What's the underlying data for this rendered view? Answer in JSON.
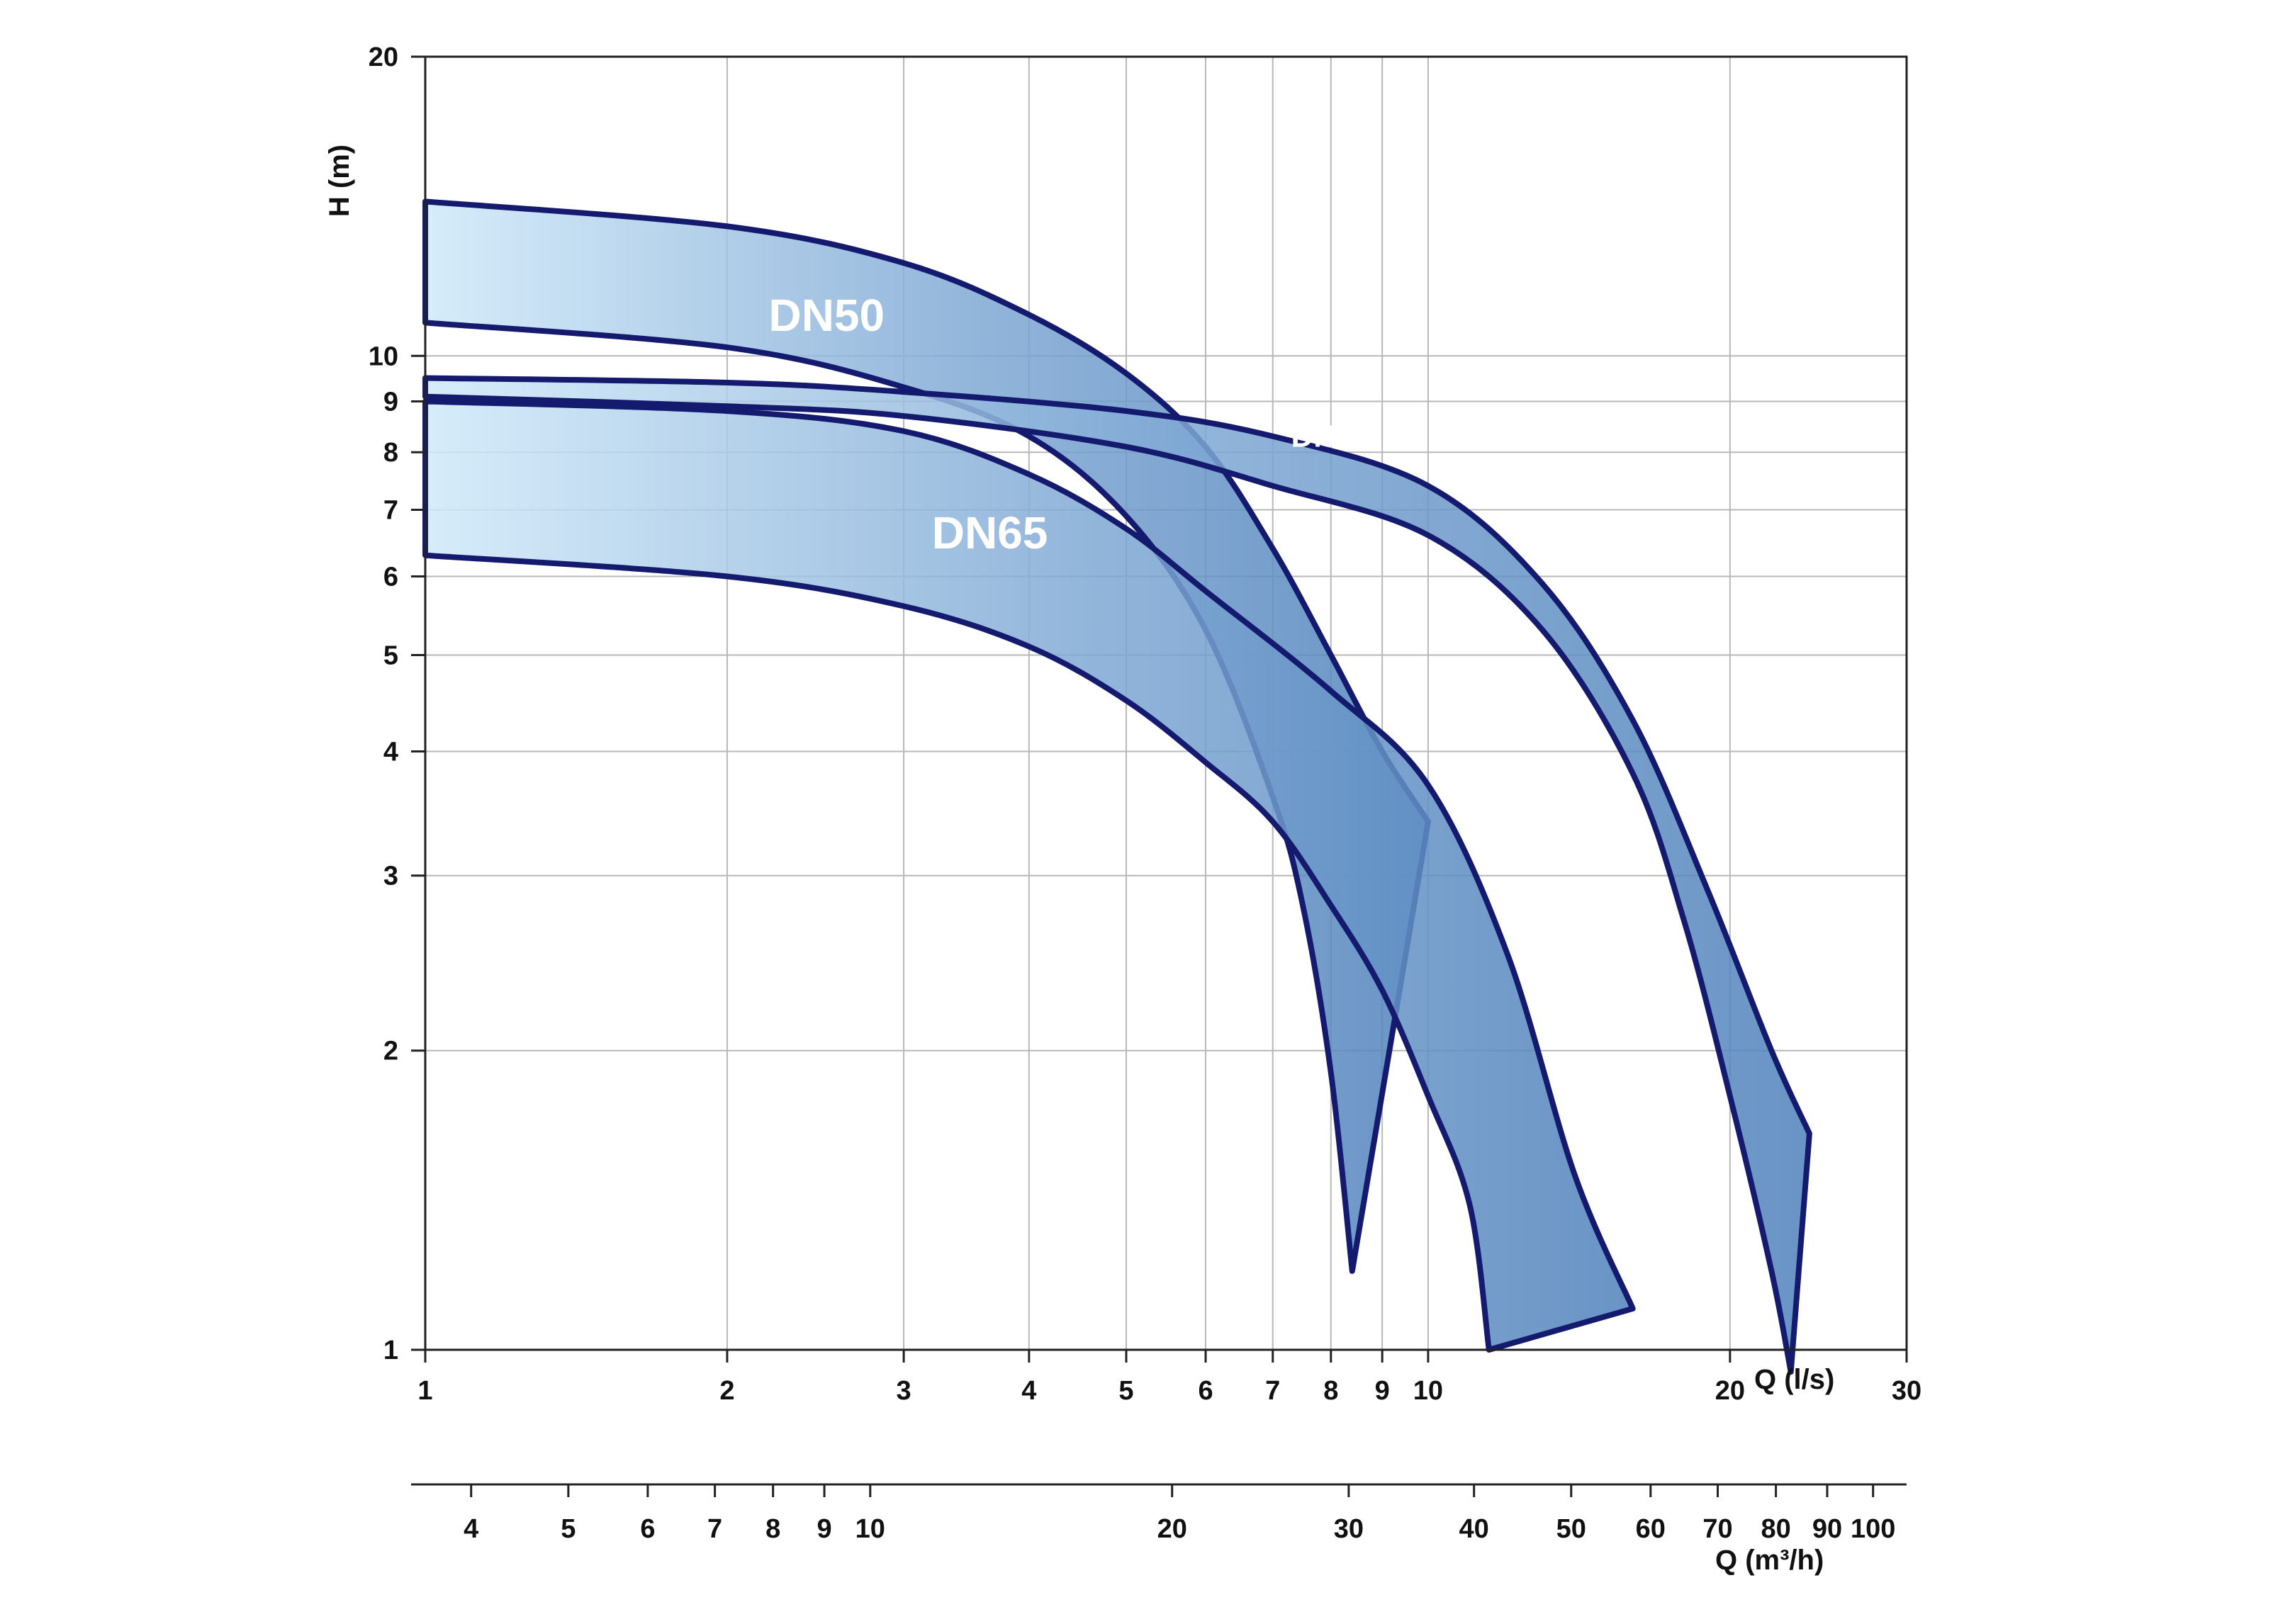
{
  "chart_data": {
    "type": "area",
    "title": "",
    "ylabel": "H (m)",
    "xlabel": "Q (l/s)",
    "x2label": "Q (m³/h)",
    "yscale": "log",
    "xscale": "log",
    "ylim": [
      1,
      20
    ],
    "xlim": [
      1,
      30
    ],
    "grid": true,
    "y_ticks": [
      1,
      2,
      3,
      4,
      5,
      6,
      7,
      8,
      9,
      10,
      20
    ],
    "x_ticks": [
      1,
      2,
      3,
      4,
      5,
      6,
      7,
      8,
      9,
      10,
      20,
      30
    ],
    "x2_ticks": [
      4,
      5,
      6,
      7,
      8,
      9,
      10,
      20,
      30,
      40,
      50,
      60,
      70,
      80,
      90,
      100
    ],
    "colors": {
      "band_fill_light": "#cfe9f9",
      "band_fill_dark": "#4f81bb",
      "band_stroke": "#141a6e",
      "overlap_fill": "#1f6fb0"
    },
    "series": [
      {
        "name": "DN50",
        "upper": [
          [
            1,
            14.3
          ],
          [
            2,
            13.5
          ],
          [
            3,
            12.4
          ],
          [
            4,
            11.0
          ],
          [
            5,
            9.6
          ],
          [
            6,
            8.1
          ],
          [
            7,
            6.4
          ],
          [
            8,
            5.0
          ],
          [
            9,
            4.0
          ],
          [
            10,
            3.4
          ]
        ],
        "lower": [
          [
            1,
            10.8
          ],
          [
            2,
            10.2
          ],
          [
            3,
            9.3
          ],
          [
            4,
            8.3
          ],
          [
            5,
            6.9
          ],
          [
            6,
            5.3
          ],
          [
            7,
            3.6
          ],
          [
            7.5,
            2.8
          ],
          [
            8,
            1.9
          ],
          [
            8.4,
            1.2
          ]
        ],
        "end_x": [
          8.4,
          10
        ],
        "end_h": [
          1.2,
          1.17
        ]
      },
      {
        "name": "DN65",
        "upper": [
          [
            1,
            9.0
          ],
          [
            2,
            8.8
          ],
          [
            3,
            8.4
          ],
          [
            4,
            7.6
          ],
          [
            5,
            6.7
          ],
          [
            6,
            5.8
          ],
          [
            8,
            4.6
          ],
          [
            10,
            3.7
          ],
          [
            12,
            2.5
          ],
          [
            14,
            1.5
          ],
          [
            16,
            1.1
          ]
        ],
        "lower": [
          [
            1,
            6.3
          ],
          [
            2,
            6.0
          ],
          [
            3,
            5.6
          ],
          [
            4,
            5.1
          ],
          [
            5,
            4.5
          ],
          [
            6,
            3.9
          ],
          [
            7,
            3.4
          ],
          [
            8,
            2.8
          ],
          [
            9,
            2.3
          ],
          [
            10,
            1.8
          ],
          [
            11,
            1.4
          ],
          [
            11.5,
            1.0
          ]
        ],
        "end_x": [
          11.5,
          16
        ],
        "end_h": [
          1.0,
          1.1
        ]
      },
      {
        "name": "DN80",
        "upper": [
          [
            1,
            9.5
          ],
          [
            2,
            9.4
          ],
          [
            3,
            9.2
          ],
          [
            5,
            8.8
          ],
          [
            7,
            8.3
          ],
          [
            10,
            7.4
          ],
          [
            13,
            5.9
          ],
          [
            16,
            4.3
          ],
          [
            19,
            2.9
          ],
          [
            22,
            2.0
          ],
          [
            24,
            1.65
          ]
        ],
        "lower": [
          [
            1,
            9.1
          ],
          [
            2,
            8.9
          ],
          [
            3,
            8.7
          ],
          [
            5,
            8.1
          ],
          [
            7,
            7.4
          ],
          [
            10,
            6.6
          ],
          [
            13,
            5.3
          ],
          [
            16,
            3.8
          ],
          [
            18,
            2.7
          ],
          [
            20,
            1.8
          ],
          [
            22,
            1.2
          ],
          [
            23,
            0.95
          ]
        ],
        "end_x": [
          23,
          24
        ],
        "end_h": [
          0.95,
          1.65
        ]
      }
    ]
  }
}
